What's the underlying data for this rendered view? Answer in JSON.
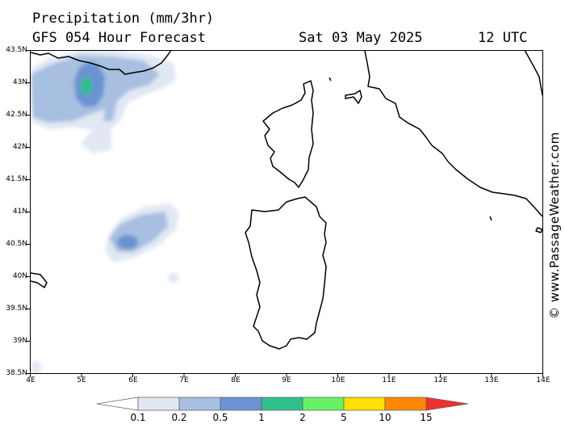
{
  "header": {
    "title": "Precipitation (mm/3hr)",
    "model": "GFS 054 Hour Forecast",
    "date": "Sat 03 May 2025",
    "time": "12 UTC"
  },
  "credit": "© www.PassageWeather.com",
  "latitude_labels": [
    "43.5N",
    "43N",
    "42.5N",
    "42N",
    "41.5N",
    "41N",
    "40.5N",
    "40N",
    "39.5N",
    "39N",
    "38.5N"
  ],
  "longitude_labels": [
    "4E",
    "5E",
    "6E",
    "7E",
    "8E",
    "9E",
    "10E",
    "11E",
    "12E",
    "13E",
    "14E"
  ],
  "legend": {
    "labels": [
      "0.1",
      "0.2",
      "0.5",
      "1",
      "2",
      "5",
      "10",
      "15"
    ],
    "colors": [
      "#ffffff",
      "#e1e8f3",
      "#a7bfe0",
      "#6b93d2",
      "#2fc08c",
      "#66f263",
      "#ffe000",
      "#ff8800",
      "#ee3030"
    ]
  },
  "map": {
    "lat_range": [
      38.5,
      43.5
    ],
    "lon_range": [
      4,
      14
    ],
    "regions": [
      "Corsica",
      "Sardinia",
      "Italy coast",
      "Provence coast"
    ],
    "precip_areas": [
      "northwest Gulf of Lion band",
      "west of Sardinia patch"
    ]
  }
}
